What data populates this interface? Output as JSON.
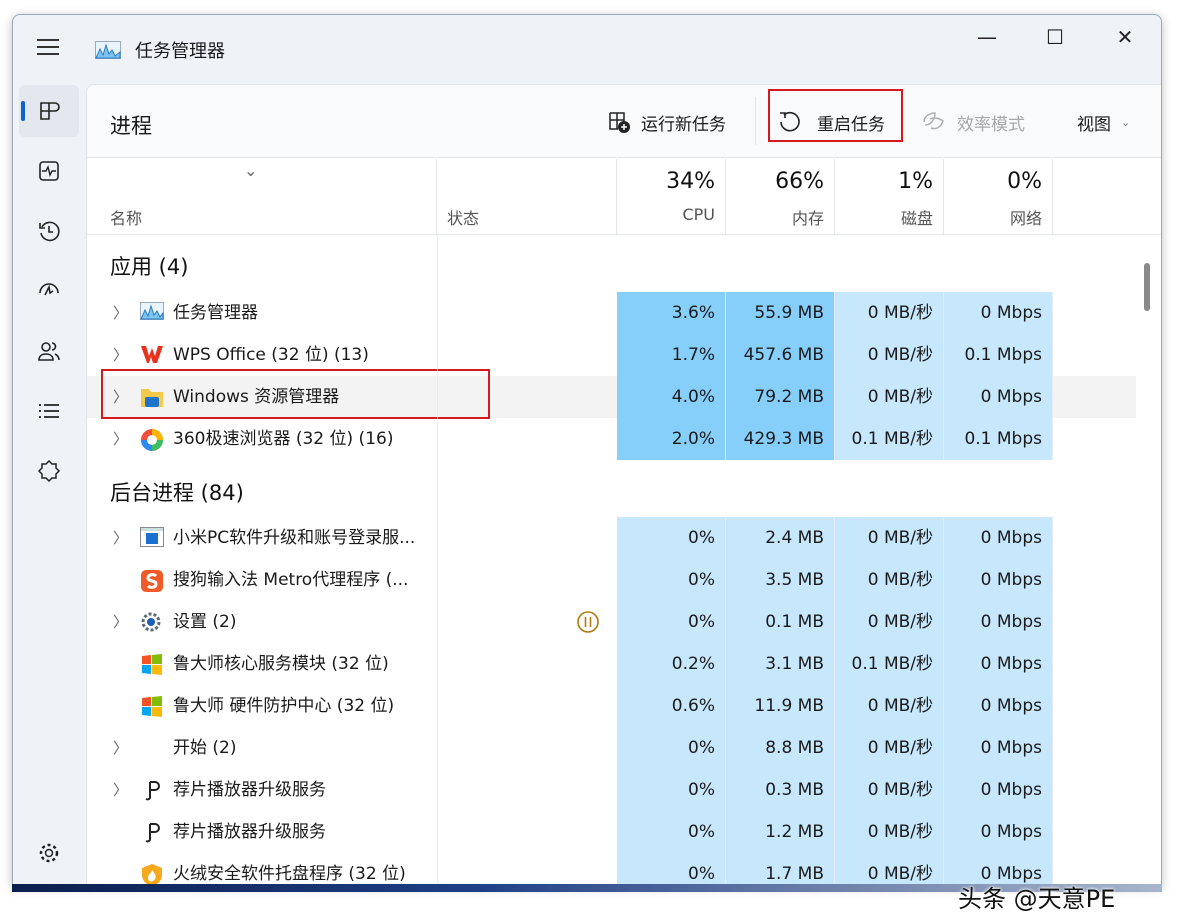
{
  "window": {
    "title": "任务管理器",
    "icon": "task-manager-icon",
    "controls": [
      "minimize",
      "maximize",
      "close"
    ]
  },
  "sidebar": {
    "items": [
      {
        "name": "processes",
        "icon": "processes-icon",
        "active": true
      },
      {
        "name": "performance",
        "icon": "performance-icon"
      },
      {
        "name": "app-history",
        "icon": "history-icon"
      },
      {
        "name": "startup-apps",
        "icon": "startup-icon"
      },
      {
        "name": "users",
        "icon": "users-icon"
      },
      {
        "name": "details",
        "icon": "details-icon"
      },
      {
        "name": "services",
        "icon": "services-icon"
      }
    ],
    "settings_icon": "gear-icon"
  },
  "header": {
    "title": "进程",
    "run_new_task": "运行新任务",
    "restart_task": "重启任务",
    "efficiency_mode": "效率模式",
    "view": "视图"
  },
  "columns": {
    "name": "名称",
    "status": "状态",
    "cpu": {
      "pct": "34%",
      "label": "CPU"
    },
    "memory": {
      "pct": "66%",
      "label": "内存"
    },
    "disk": {
      "pct": "1%",
      "label": "磁盘"
    },
    "network": {
      "pct": "0%",
      "label": "网络"
    }
  },
  "colors": {
    "heat_high": "#86cffa",
    "heat_low": "#c6e7fc",
    "highlight": "#d6191f",
    "accent": "#0a63c9"
  },
  "groups": [
    {
      "title": "应用 (4)",
      "rows": [
        {
          "name": "任务管理器",
          "icon": "task-manager-icon",
          "expand": true,
          "cpu": "3.6%",
          "mem": "55.9 MB",
          "disk": "0 MB/秒",
          "net": "0 Mbps",
          "heat": [
            "high",
            "high",
            "low",
            "low"
          ]
        },
        {
          "name": "WPS Office (32 位) (13)",
          "icon": "wps-icon",
          "expand": true,
          "cpu": "1.7%",
          "mem": "457.6 MB",
          "disk": "0 MB/秒",
          "net": "0.1 Mbps",
          "heat": [
            "high",
            "high",
            "low",
            "low"
          ]
        },
        {
          "name": "Windows 资源管理器",
          "icon": "folder-icon",
          "expand": true,
          "selected": true,
          "cpu": "4.0%",
          "mem": "79.2 MB",
          "disk": "0 MB/秒",
          "net": "0 Mbps",
          "heat": [
            "high",
            "high",
            "low",
            "low"
          ]
        },
        {
          "name": "360极速浏览器 (32 位) (16)",
          "icon": "browser-360-icon",
          "expand": true,
          "cpu": "2.0%",
          "mem": "429.3 MB",
          "disk": "0.1 MB/秒",
          "net": "0.1 Mbps",
          "heat": [
            "high",
            "high",
            "low",
            "low"
          ]
        }
      ]
    },
    {
      "title": "后台进程 (84)",
      "rows": [
        {
          "name": "小米PC软件升级和账号登录服...",
          "icon": "app-window-icon",
          "expand": true,
          "cpu": "0%",
          "mem": "2.4 MB",
          "disk": "0 MB/秒",
          "net": "0 Mbps",
          "heat": [
            "low",
            "low",
            "low",
            "low"
          ]
        },
        {
          "name": "搜狗输入法 Metro代理程序 (...",
          "icon": "sogou-icon",
          "expand": false,
          "cpu": "0%",
          "mem": "3.5 MB",
          "disk": "0 MB/秒",
          "net": "0 Mbps",
          "heat": [
            "low",
            "low",
            "low",
            "low"
          ]
        },
        {
          "name": "设置 (2)",
          "icon": "settings-gear-icon",
          "expand": true,
          "status": "paused",
          "cpu": "0%",
          "mem": "0.1 MB",
          "disk": "0 MB/秒",
          "net": "0 Mbps",
          "heat": [
            "low",
            "low",
            "low",
            "low"
          ]
        },
        {
          "name": "鲁大师核心服务模块 (32 位)",
          "icon": "windows-flag-icon",
          "expand": false,
          "cpu": "0.2%",
          "mem": "3.1 MB",
          "disk": "0.1 MB/秒",
          "net": "0 Mbps",
          "heat": [
            "low",
            "low",
            "low",
            "low"
          ]
        },
        {
          "name": "鲁大师 硬件防护中心 (32 位)",
          "icon": "windows-flag-icon",
          "expand": false,
          "cpu": "0.6%",
          "mem": "11.9 MB",
          "disk": "0 MB/秒",
          "net": "0 Mbps",
          "heat": [
            "low",
            "low",
            "low",
            "low"
          ]
        },
        {
          "name": "开始 (2)",
          "icon": "",
          "expand": true,
          "cpu": "0%",
          "mem": "8.8 MB",
          "disk": "0 MB/秒",
          "net": "0 Mbps",
          "heat": [
            "low",
            "low",
            "low",
            "low"
          ]
        },
        {
          "name": "荐片播放器升级服务",
          "icon": "jianpian-icon",
          "expand": true,
          "cpu": "0%",
          "mem": "0.3 MB",
          "disk": "0 MB/秒",
          "net": "0 Mbps",
          "heat": [
            "low",
            "low",
            "low",
            "low"
          ]
        },
        {
          "name": "荐片播放器升级服务",
          "icon": "jianpian-icon",
          "expand": false,
          "cpu": "0%",
          "mem": "1.2 MB",
          "disk": "0 MB/秒",
          "net": "0 Mbps",
          "heat": [
            "low",
            "low",
            "low",
            "low"
          ]
        },
        {
          "name": "火绒安全软件托盘程序 (32 位)",
          "icon": "huorong-icon",
          "expand": false,
          "cpu": "0%",
          "mem": "1.7 MB",
          "disk": "0 MB/秒",
          "net": "0 Mbps",
          "heat": [
            "low",
            "low",
            "low",
            "low"
          ]
        }
      ]
    }
  ],
  "watermark": "头条 @天意PE"
}
